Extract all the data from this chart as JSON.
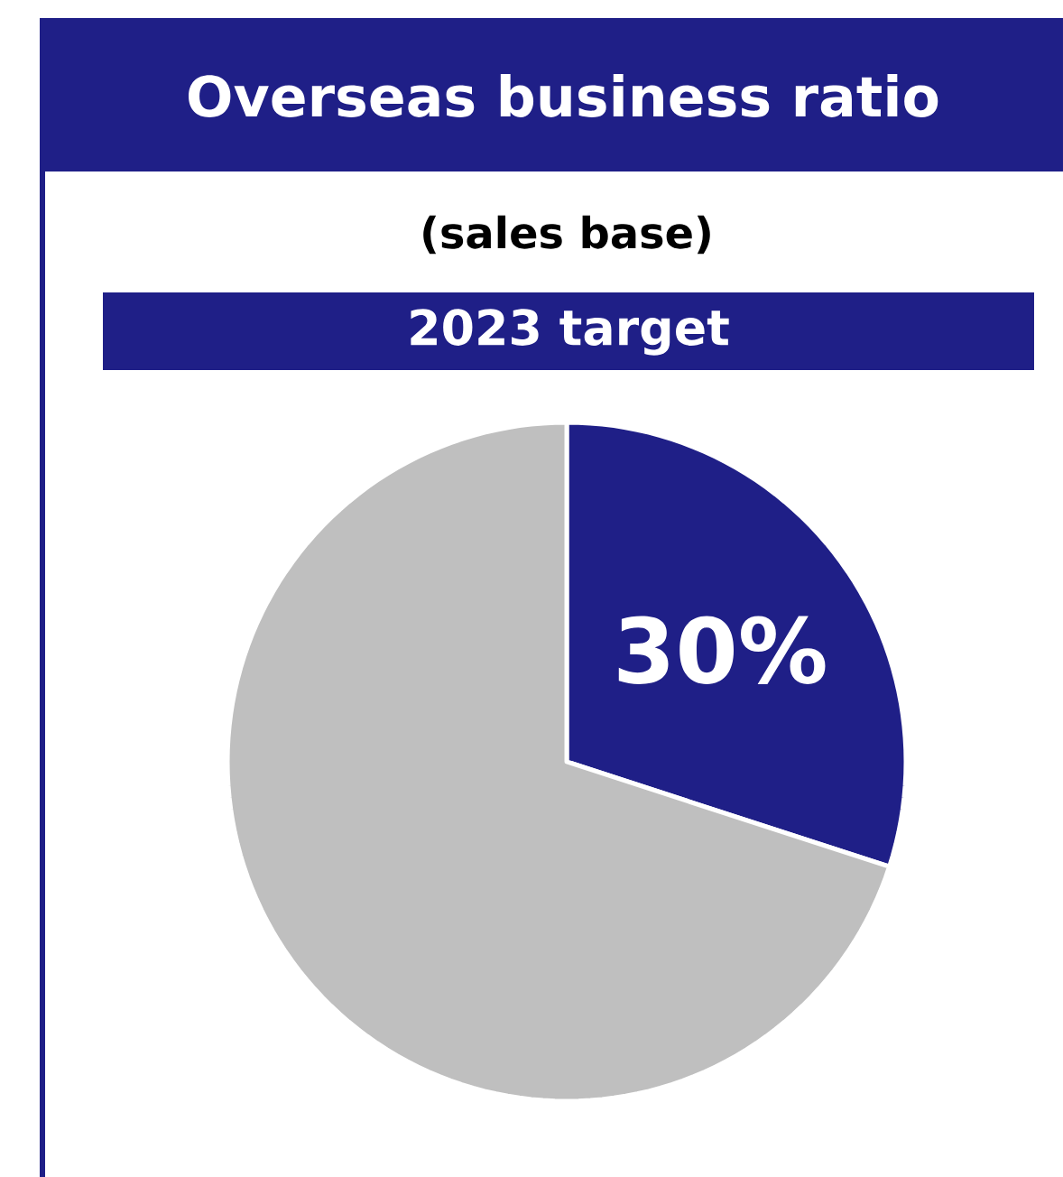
{
  "chart_data": {
    "type": "pie",
    "title": "Overseas business ratio",
    "subtitle": "(sales base)",
    "annotations": [
      "2023 target"
    ],
    "categories": [
      null,
      null
    ],
    "values": [
      30,
      70
    ],
    "colors": [
      "#1f1f87",
      "#bfbfbf"
    ],
    "value_labels": [
      "30%",
      null
    ]
  }
}
